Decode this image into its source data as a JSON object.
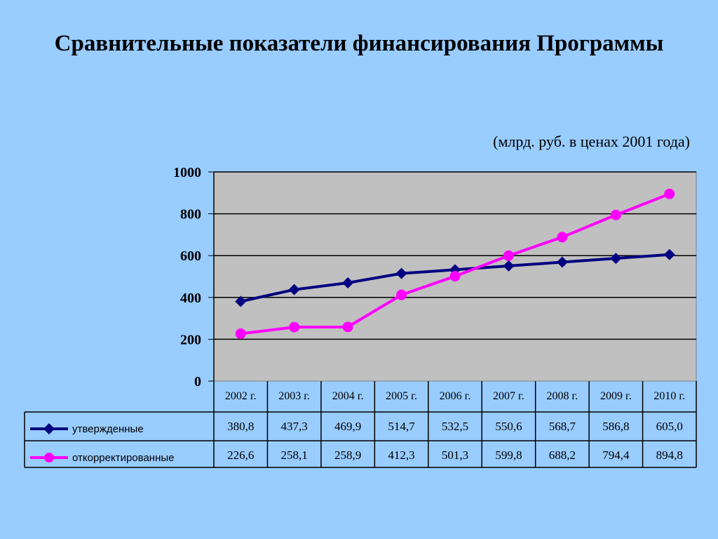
{
  "title": "Сравнительные показатели финансирования Программы",
  "unit_note": "(млрд. руб. в ценах 2001 года)",
  "colors": {
    "background": "#99ccff",
    "plot_area": "#c0c0c0",
    "series_1": "#000080",
    "series_2": "#ff00ff"
  },
  "chart_data": {
    "type": "line",
    "title": "Сравнительные показатели финансирования Программы",
    "ylabel": "(млрд. руб. в ценах 2001 года)",
    "categories": [
      "2002 г.",
      "2003 г.",
      "2004 г.",
      "2005 г.",
      "2006 г.",
      "2007 г.",
      "2008 г.",
      "2009 г.",
      "2010 г."
    ],
    "ylim": [
      0,
      1000
    ],
    "yticks": [
      0,
      200,
      400,
      600,
      800,
      1000
    ],
    "grid": true,
    "legend_position": "data-table",
    "series": [
      {
        "name": "утвержденные",
        "marker": "diamond",
        "color": "#000080",
        "values": [
          380.8,
          437.3,
          469.9,
          514.7,
          532.5,
          550.6,
          568.7,
          586.8,
          605.0
        ],
        "labels": [
          "380,8",
          "437,3",
          "469,9",
          "514,7",
          "532,5",
          "550,6",
          "568,7",
          "586,8",
          "605,0"
        ]
      },
      {
        "name": "откорректированные",
        "marker": "circle",
        "color": "#ff00ff",
        "values": [
          226.6,
          258.1,
          258.9,
          412.3,
          501.3,
          599.8,
          688.2,
          794.4,
          894.8
        ],
        "labels": [
          "226,6",
          "258,1",
          "258,9",
          "412,3",
          "501,3",
          "599,8",
          "688,2",
          "794,4",
          "894,8"
        ]
      }
    ]
  }
}
